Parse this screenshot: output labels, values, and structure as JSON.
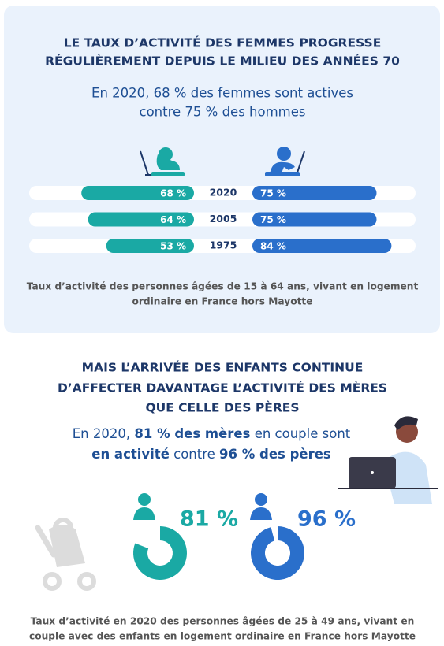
{
  "chart_data": [
    {
      "type": "bar",
      "title_lines": [
        "LE TAUX D’ACTIVITÉ DES FEMMES PROGRESSE",
        "RÉGULIÈREMENT DEPUIS LE MILIEU DES ANNÉES 70"
      ],
      "subtitle_lines": [
        "En 2020, 68 % des femmes sont actives",
        "contre 75 % des hommes"
      ],
      "categories": [
        "2020",
        "2005",
        "1975"
      ],
      "xlim": [
        0,
        100
      ],
      "series": [
        {
          "color": "#1aa9a4",
          "values": [
            68,
            64,
            53
          ],
          "value_labels": [
            "68 %",
            "64 %",
            "53 %"
          ]
        },
        {
          "color": "#2a6fcb",
          "values": [
            75,
            75,
            84
          ],
          "value_labels": [
            "75 %",
            "75 %",
            "84 %"
          ]
        }
      ],
      "note_lines": [
        "Taux d’activité des personnes âgées de 15 à 64 ans, vivant en logement",
        "ordinaire en France hors Mayotte"
      ]
    },
    {
      "type": "donut",
      "title_lines": [
        "MAIS L’ARRIVÉE DES ENFANTS CONTINUE",
        "D’AFFECTER DAVANTAGE L’ACTIVITÉ DES MÈRES",
        "QUE CELLE DES PÈRES"
      ],
      "subtitle_lines": [
        [
          "En 2020, ",
          "81 % des mères",
          " en couple sont"
        ],
        [
          "en activité",
          " contre ",
          "96 % des pères"
        ]
      ],
      "series": [
        {
          "color": "#1aa9a4",
          "values": [
            81
          ],
          "value_labels": [
            "81 %"
          ]
        },
        {
          "color": "#2a6fcb",
          "values": [
            96
          ],
          "value_labels": [
            "96 %"
          ]
        }
      ],
      "note_lines": [
        "Taux d’activité en 2020 des personnes âgées de 25 à 49 ans, vivant en",
        "couple avec des enfants en logement ordinaire en France hors Mayotte"
      ]
    }
  ]
}
